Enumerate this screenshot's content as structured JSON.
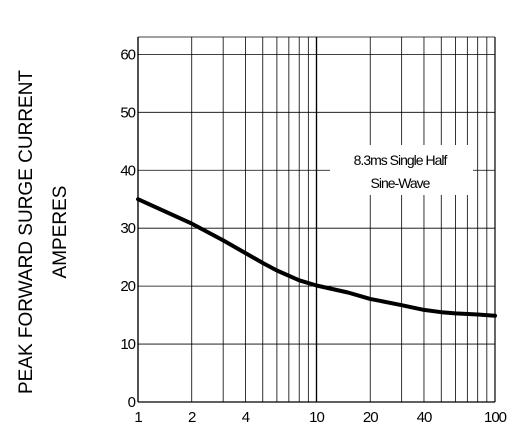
{
  "chart_data": {
    "type": "line",
    "ylabel_line1": "PEAK FORWARD SURGE CURRENT",
    "ylabel_line2": "AMPERES",
    "xlabel": "",
    "x_scale": "log",
    "xlim": [
      1,
      100
    ],
    "ylim": [
      0,
      63
    ],
    "x_ticks": [
      "1",
      "2",
      "4",
      "10",
      "20",
      "40",
      "100"
    ],
    "y_ticks": [
      "0",
      "10",
      "20",
      "30",
      "40",
      "50",
      "60"
    ],
    "grid": true,
    "annotation_line1": "8.3ms Single Half",
    "annotation_line2": "Sine-Wave",
    "series": [
      {
        "x": [
          1,
          2,
          3,
          4,
          5,
          6,
          8,
          10,
          15,
          20,
          30,
          40,
          50,
          60,
          80,
          100
        ],
        "y": [
          35,
          30.8,
          27.9,
          25.7,
          24,
          22.7,
          21,
          20.1,
          18.9,
          17.8,
          16.7,
          15.9,
          15.5,
          15.3,
          15.1,
          14.9
        ]
      }
    ]
  }
}
